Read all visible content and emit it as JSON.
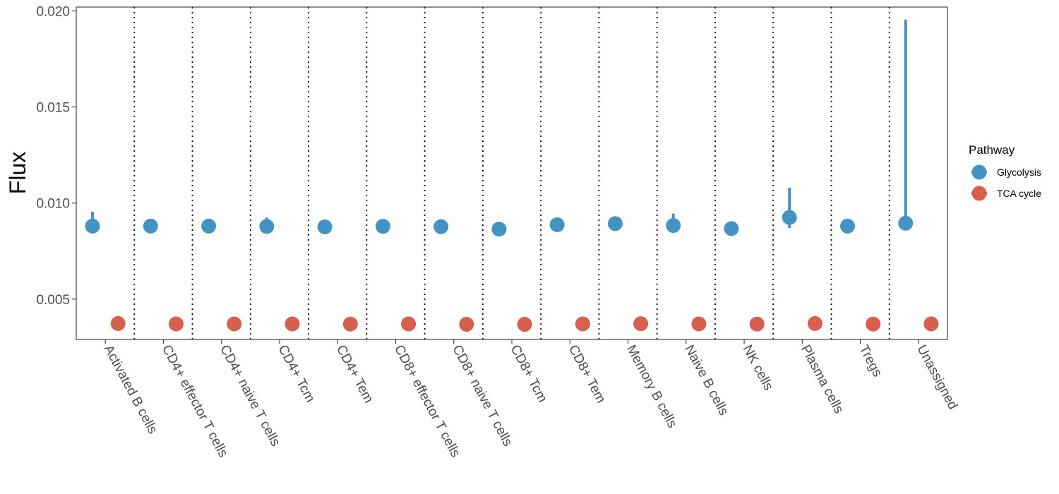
{
  "chart_data": {
    "type": "scatter",
    "title": "",
    "xlabel": "",
    "ylabel": "Flux",
    "ylim": [
      0.0029,
      0.0202
    ],
    "y_ticks": [
      0.005,
      0.01,
      0.015,
      0.02
    ],
    "y_tick_labels": [
      "0.005",
      "0.010",
      "0.015",
      "0.020"
    ],
    "grid": false,
    "category_separators": "dotted",
    "legend": {
      "title": "Pathway",
      "placement": "right"
    },
    "categories": [
      "Activated B cells",
      "CD4+ effector T cells",
      "CD4+ naive T cells",
      "CD4+ Tcm",
      "CD4+ Tem",
      "CD8+ effector T cells",
      "CD8+ naive T cells",
      "CD8+ Tcm",
      "CD8+ Tem",
      "Memory B cells",
      "Naive B cells",
      "NK cells",
      "Plasma cells",
      "Tregs",
      "Unassigned"
    ],
    "series": [
      {
        "name": "Glycolysis",
        "color": "#4393C3",
        "values": [
          0.0088,
          0.0088,
          0.0088,
          0.00878,
          0.00876,
          0.00879,
          0.00877,
          0.00864,
          0.00887,
          0.00893,
          0.00883,
          0.00867,
          0.00925,
          0.0088,
          0.00895
        ],
        "error_low": [
          0.0088,
          0.0088,
          0.0088,
          0.0087,
          0.00876,
          0.00879,
          0.0087,
          0.00864,
          0.00887,
          0.00893,
          0.0087,
          0.00867,
          0.0087,
          0.0088,
          0.0088
        ],
        "error_high": [
          0.00955,
          0.0088,
          0.0088,
          0.00925,
          0.00876,
          0.00879,
          0.00915,
          0.00864,
          0.00887,
          0.00893,
          0.00945,
          0.00867,
          0.0108,
          0.0088,
          0.01955
        ]
      },
      {
        "name": "TCA cycle",
        "color": "#D6604D",
        "values": [
          0.00373,
          0.00371,
          0.00371,
          0.00371,
          0.0037,
          0.00371,
          0.00369,
          0.00369,
          0.00371,
          0.00372,
          0.00371,
          0.0037,
          0.00373,
          0.0037,
          0.00371
        ],
        "error_low": [
          0.00373,
          0.00371,
          0.00371,
          0.00371,
          0.0037,
          0.00371,
          0.00369,
          0.00369,
          0.00371,
          0.00372,
          0.00371,
          0.0037,
          0.00373,
          0.0037,
          0.00365
        ],
        "error_high": [
          0.00373,
          0.00371,
          0.00371,
          0.00371,
          0.0037,
          0.00371,
          0.00369,
          0.00369,
          0.00371,
          0.00372,
          0.00371,
          0.0037,
          0.00373,
          0.0037,
          0.0041
        ]
      }
    ]
  }
}
